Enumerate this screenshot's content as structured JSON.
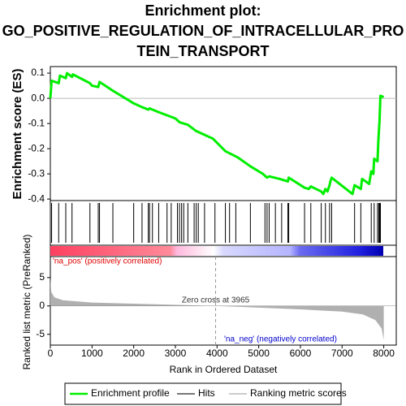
{
  "chart_data": {
    "type": "line",
    "title": [
      "Enrichment plot:",
      "GO_POSITIVE_REGULATION_OF_INTRACELLULAR_PRO",
      "TEIN_TRANSPORT"
    ],
    "ylabel": "Enrichment score (ES)",
    "xlabel": "Rank in Ordered Dataset",
    "ylabel2": "Ranked list metric (PreRanked)",
    "xlim": [
      0,
      8300
    ],
    "xticks": [
      0,
      1000,
      2000,
      3000,
      4000,
      5000,
      6000,
      7000,
      8000
    ],
    "ylim": [
      -0.406,
      0.126
    ],
    "yticks": [
      0.1,
      {
        "value": 0,
        "label": "0.0"
      },
      -0.1,
      -0.2,
      -0.3,
      -0.4
    ],
    "x": [
      0,
      30,
      200,
      230,
      370,
      400,
      520,
      540,
      950,
      1000,
      1150,
      1180,
      1500,
      2000,
      2200,
      2350,
      2380,
      2600,
      3000,
      3100,
      3300,
      3500,
      3900,
      4200,
      4500,
      4800,
      5100,
      5200,
      5250,
      5500,
      5700,
      5720,
      6100,
      6200,
      6250,
      6500,
      6550,
      6600,
      6650,
      6700,
      6720,
      6750,
      7250,
      7300,
      7450,
      7480,
      7650,
      7700,
      7750,
      7770,
      7850,
      7870,
      7900,
      7920,
      8000
    ],
    "series": [
      {
        "name": "Enrichment profile",
        "color": "#00ee00",
        "values": [
          0,
          0.07,
          0.06,
          0.09,
          0.08,
          0.1,
          0.085,
          0.095,
          0.06,
          0.05,
          0.045,
          0.065,
          0.03,
          -0.02,
          -0.035,
          -0.045,
          -0.04,
          -0.055,
          -0.08,
          -0.095,
          -0.105,
          -0.13,
          -0.16,
          -0.21,
          -0.235,
          -0.27,
          -0.3,
          -0.315,
          -0.31,
          -0.32,
          -0.33,
          -0.315,
          -0.355,
          -0.36,
          -0.35,
          -0.37,
          -0.38,
          -0.36,
          -0.37,
          -0.345,
          -0.33,
          -0.315,
          -0.38,
          -0.345,
          -0.36,
          -0.32,
          -0.34,
          -0.29,
          -0.3,
          -0.24,
          -0.25,
          -0.17,
          -0.085,
          0.01,
          0.005
        ]
      }
    ],
    "hits": {
      "name": "Hits",
      "color": "#000000",
      "values": [
        30,
        200,
        370,
        520,
        950,
        1150,
        1180,
        1500,
        2000,
        2200,
        2350,
        2380,
        2450,
        2600,
        2800,
        2900,
        3050,
        3100,
        3150,
        3200,
        3300,
        3450,
        3500,
        3550,
        3700,
        3950,
        4200,
        4300,
        4450,
        4800,
        5150,
        5200,
        5250,
        5400,
        5550,
        5700,
        5720,
        6100,
        6250,
        6500,
        6600,
        6700,
        6750,
        7300,
        7450,
        7700,
        7770,
        7850,
        7880,
        7900,
        7920
      ]
    },
    "metric": {
      "name": "Ranking metric scores",
      "color": "#b0b0b0",
      "x": [
        0,
        20,
        100,
        300,
        1000,
        2000,
        3000,
        3965,
        5000,
        6000,
        7000,
        7500,
        7800,
        7950,
        8000
      ],
      "values": [
        5,
        2.5,
        1.5,
        1,
        0.6,
        0.4,
        0.2,
        0,
        -0.3,
        -0.6,
        -1,
        -1.5,
        -2.5,
        -4,
        -6
      ]
    },
    "y2lim": [
      -6.9,
      8.7
    ],
    "y2ticks": [
      5,
      0,
      -5
    ],
    "zero_cross": {
      "value": 3965,
      "label": "Zero cross at 3965"
    },
    "pos_label": "'na_pos' (positively correlated)",
    "neg_label": "'na_neg' (negatively correlated)"
  }
}
